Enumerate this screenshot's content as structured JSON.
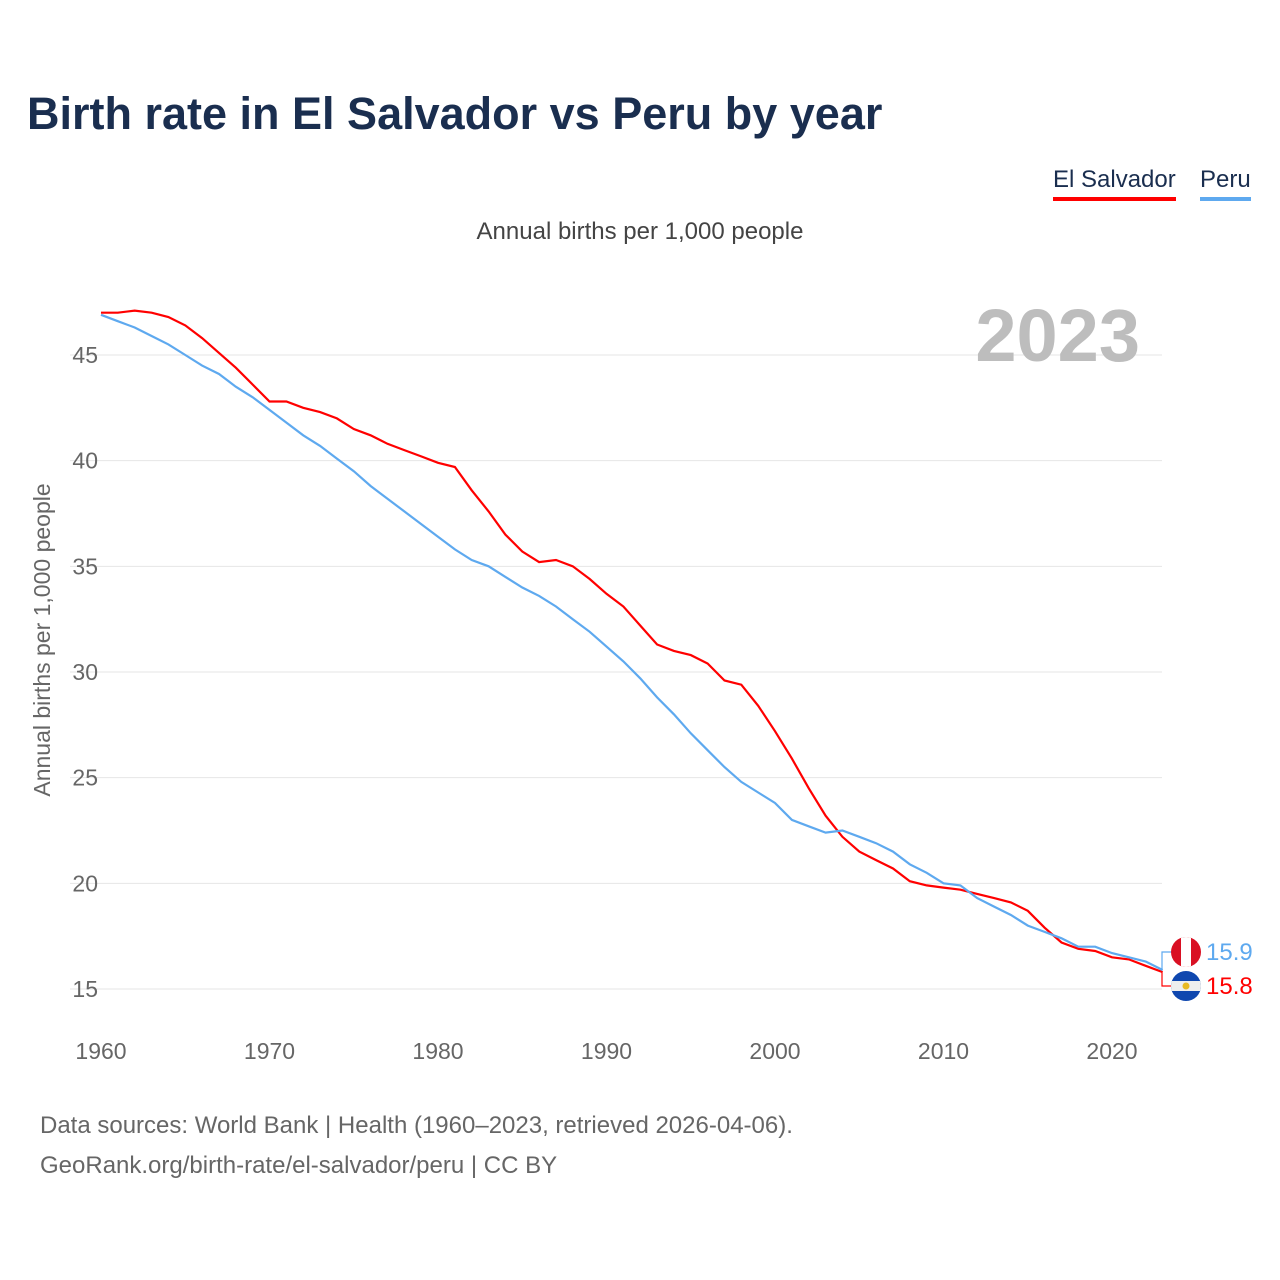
{
  "title": "Birth rate in El Salvador vs Peru by year",
  "subtitle": "Annual births per 1,000 people",
  "footer": {
    "line1": "Data sources: World Bank | Health (1960–2023, retrieved 2026-04-06).",
    "line2": "GeoRank.org/birth-rate/el-salvador/peru | CC BY"
  },
  "chart_data": {
    "type": "line",
    "title": "Birth rate in El Salvador vs Peru by year",
    "ylabel": "Annual births per 1,000 people",
    "xlabel": "",
    "year_watermark": "2023",
    "xlim": [
      1960,
      2023
    ],
    "ylim": [
      13,
      47.5
    ],
    "xticks": [
      1960,
      1970,
      1980,
      1990,
      2000,
      2010,
      2020
    ],
    "yticks": [
      15,
      20,
      25,
      30,
      35,
      40,
      45
    ],
    "grid": true,
    "legend_position": "top-right",
    "x": [
      1960,
      1961,
      1962,
      1963,
      1964,
      1965,
      1966,
      1967,
      1968,
      1969,
      1970,
      1971,
      1972,
      1973,
      1974,
      1975,
      1976,
      1977,
      1978,
      1979,
      1980,
      1981,
      1982,
      1983,
      1984,
      1985,
      1986,
      1987,
      1988,
      1989,
      1990,
      1991,
      1992,
      1993,
      1994,
      1995,
      1996,
      1997,
      1998,
      1999,
      2000,
      2001,
      2002,
      2003,
      2004,
      2005,
      2006,
      2007,
      2008,
      2009,
      2010,
      2011,
      2012,
      2013,
      2014,
      2015,
      2016,
      2017,
      2018,
      2019,
      2020,
      2021,
      2022,
      2023
    ],
    "series": [
      {
        "name": "El Salvador",
        "color": "#ff0000",
        "end_label": "15.8",
        "values": [
          47.0,
          47.0,
          47.1,
          47.0,
          46.8,
          46.4,
          45.8,
          45.1,
          44.4,
          43.6,
          42.8,
          42.8,
          42.5,
          42.3,
          42.0,
          41.5,
          41.2,
          40.8,
          40.5,
          40.2,
          39.9,
          39.7,
          38.6,
          37.6,
          36.5,
          35.7,
          35.2,
          35.3,
          35.0,
          34.4,
          33.7,
          33.1,
          32.2,
          31.3,
          31.0,
          30.8,
          30.4,
          29.6,
          29.4,
          28.4,
          27.2,
          25.9,
          24.5,
          23.2,
          22.2,
          21.5,
          21.1,
          20.7,
          20.1,
          19.9,
          19.8,
          19.7,
          19.5,
          19.3,
          19.1,
          18.7,
          17.9,
          17.2,
          16.9,
          16.8,
          16.5,
          16.4,
          16.1,
          15.8
        ]
      },
      {
        "name": "Peru",
        "color": "#5ea9ef",
        "end_label": "15.9",
        "values": [
          46.9,
          46.6,
          46.3,
          45.9,
          45.5,
          45.0,
          44.5,
          44.1,
          43.5,
          43.0,
          42.4,
          41.8,
          41.2,
          40.7,
          40.1,
          39.5,
          38.8,
          38.2,
          37.6,
          37.0,
          36.4,
          35.8,
          35.3,
          35.0,
          34.5,
          34.0,
          33.6,
          33.1,
          32.5,
          31.9,
          31.2,
          30.5,
          29.7,
          28.8,
          28.0,
          27.1,
          26.3,
          25.5,
          24.8,
          24.3,
          23.8,
          23.0,
          22.7,
          22.4,
          22.5,
          22.2,
          21.9,
          21.5,
          20.9,
          20.5,
          20.0,
          19.9,
          19.3,
          18.9,
          18.5,
          18.0,
          17.7,
          17.4,
          17.0,
          17.0,
          16.7,
          16.5,
          16.3,
          15.9
        ]
      }
    ]
  }
}
